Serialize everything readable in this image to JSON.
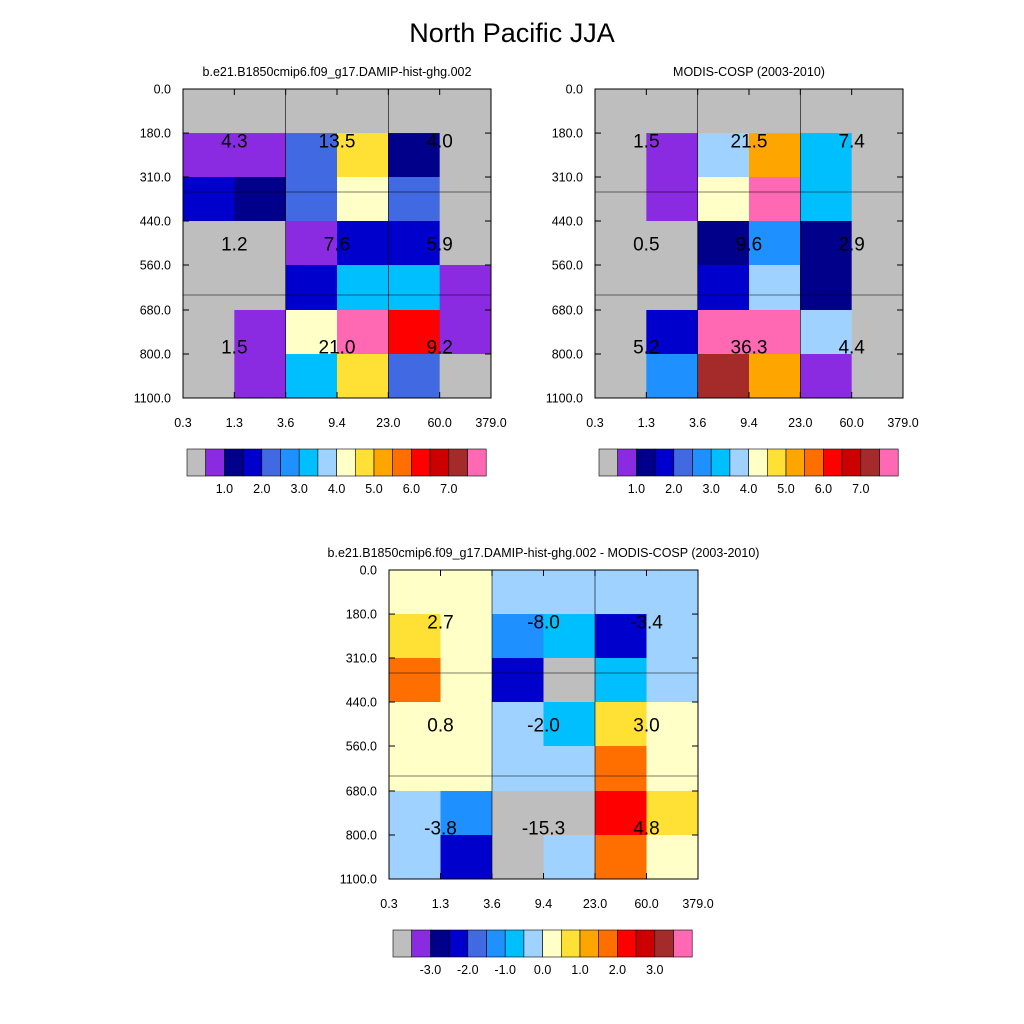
{
  "title": "North Pacific JJA",
  "colors": {
    "gray": "#bebebe",
    "purple": "#8a2be2",
    "navy": "#00008b",
    "medblue": "#0000cd",
    "royal": "#4169e1",
    "dodger": "#1e90ff",
    "deepsky": "#00bfff",
    "lightsky": "#a0d2ff",
    "cream": "#ffffc8",
    "gold": "#ffe135",
    "orange": "#ffa500",
    "darkorange": "#ff6f00",
    "red": "#ff0000",
    "crimson": "#cd0000",
    "brown": "#a52a2a",
    "pink": "#ff69b4"
  },
  "chart_data": [
    {
      "type": "heatmap",
      "title": "b.e21.B1850cmip6.f09_g17.DAMIP-hist-ghg.002",
      "x_ticks": [
        "0.3",
        "1.3",
        "3.6",
        "9.4",
        "23.0",
        "60.0",
        "379.0"
      ],
      "y_ticks": [
        "0.0",
        "180.0",
        "310.0",
        "440.0",
        "560.0",
        "680.0",
        "800.0",
        "1100.0"
      ],
      "cells": [
        [
          "gray",
          "gray",
          "gray",
          "gray",
          "gray",
          "gray"
        ],
        [
          "purple",
          "purple",
          "royal",
          "gold",
          "navy",
          "gray"
        ],
        [
          "medblue",
          "navy",
          "royal",
          "cream",
          "royal",
          "gray"
        ],
        [
          "gray",
          "gray",
          "purple",
          "medblue",
          "medblue",
          "gray"
        ],
        [
          "gray",
          "gray",
          "medblue",
          "deepsky",
          "deepsky",
          "purple"
        ],
        [
          "gray",
          "purple",
          "cream",
          "pink",
          "red",
          "purple"
        ],
        [
          "gray",
          "purple",
          "deepsky",
          "gold",
          "royal",
          "gray"
        ]
      ],
      "block_values": [
        [
          "4.3",
          "13.5",
          "4.0"
        ],
        [
          "1.2",
          "7.6",
          "5.9"
        ],
        [
          "1.5",
          "21.0",
          "9.2"
        ]
      ],
      "colorbar": {
        "colors": [
          "gray",
          "purple",
          "navy",
          "medblue",
          "royal",
          "dodger",
          "deepsky",
          "lightsky",
          "cream",
          "gold",
          "orange",
          "darkorange",
          "red",
          "crimson",
          "brown",
          "pink"
        ],
        "labels": [
          "1.0",
          "2.0",
          "3.0",
          "4.0",
          "5.0",
          "6.0",
          "7.0"
        ]
      }
    },
    {
      "type": "heatmap",
      "title": "MODIS-COSP (2003-2010)",
      "x_ticks": [
        "0.3",
        "1.3",
        "3.6",
        "9.4",
        "23.0",
        "60.0",
        "379.0"
      ],
      "y_ticks": [
        "0.0",
        "180.0",
        "310.0",
        "440.0",
        "560.0",
        "680.0",
        "800.0",
        "1100.0"
      ],
      "cells": [
        [
          "gray",
          "gray",
          "gray",
          "gray",
          "gray",
          "gray"
        ],
        [
          "gray",
          "purple",
          "lightsky",
          "orange",
          "deepsky",
          "gray"
        ],
        [
          "gray",
          "purple",
          "cream",
          "pink",
          "deepsky",
          "gray"
        ],
        [
          "gray",
          "gray",
          "navy",
          "dodger",
          "navy",
          "gray"
        ],
        [
          "gray",
          "gray",
          "medblue",
          "lightsky",
          "navy",
          "gray"
        ],
        [
          "gray",
          "medblue",
          "pink",
          "pink",
          "lightsky",
          "gray"
        ],
        [
          "gray",
          "dodger",
          "brown",
          "orange",
          "purple",
          "gray"
        ]
      ],
      "block_values": [
        [
          "1.5",
          "21.5",
          "7.4"
        ],
        [
          "0.5",
          "9.6",
          "2.9"
        ],
        [
          "5.2",
          "36.3",
          "4.4"
        ]
      ],
      "colorbar": {
        "colors": [
          "gray",
          "purple",
          "navy",
          "medblue",
          "royal",
          "dodger",
          "deepsky",
          "lightsky",
          "cream",
          "gold",
          "orange",
          "darkorange",
          "red",
          "crimson",
          "brown",
          "pink"
        ],
        "labels": [
          "1.0",
          "2.0",
          "3.0",
          "4.0",
          "5.0",
          "6.0",
          "7.0"
        ]
      }
    },
    {
      "type": "heatmap",
      "title": "b.e21.B1850cmip6.f09_g17.DAMIP-hist-ghg.002 - MODIS-COSP (2003-2010)",
      "x_ticks": [
        "0.3",
        "1.3",
        "3.6",
        "9.4",
        "23.0",
        "60.0",
        "379.0"
      ],
      "y_ticks": [
        "0.0",
        "180.0",
        "310.0",
        "440.0",
        "560.0",
        "680.0",
        "800.0",
        "1100.0"
      ],
      "cells": [
        [
          "cream",
          "cream",
          "lightsky",
          "lightsky",
          "lightsky",
          "lightsky"
        ],
        [
          "gold",
          "cream",
          "dodger",
          "deepsky",
          "medblue",
          "lightsky"
        ],
        [
          "darkorange",
          "cream",
          "medblue",
          "gray",
          "deepsky",
          "lightsky"
        ],
        [
          "cream",
          "cream",
          "lightsky",
          "deepsky",
          "gold",
          "cream"
        ],
        [
          "cream",
          "cream",
          "lightsky",
          "lightsky",
          "darkorange",
          "cream"
        ],
        [
          "lightsky",
          "dodger",
          "gray",
          "gray",
          "red",
          "gold"
        ],
        [
          "lightsky",
          "medblue",
          "gray",
          "lightsky",
          "darkorange",
          "cream"
        ]
      ],
      "block_values": [
        [
          "2.7",
          "-8.0",
          "-3.4"
        ],
        [
          "0.8",
          "-2.0",
          "3.0"
        ],
        [
          "-3.8",
          "-15.3",
          "4.8"
        ]
      ],
      "colorbar": {
        "colors": [
          "gray",
          "purple",
          "navy",
          "medblue",
          "royal",
          "dodger",
          "deepsky",
          "lightsky",
          "cream",
          "gold",
          "orange",
          "darkorange",
          "red",
          "crimson",
          "brown",
          "pink"
        ],
        "labels": [
          "-3.0",
          "-2.0",
          "-1.0",
          "0.0",
          "1.0",
          "2.0",
          "3.0"
        ]
      }
    }
  ]
}
